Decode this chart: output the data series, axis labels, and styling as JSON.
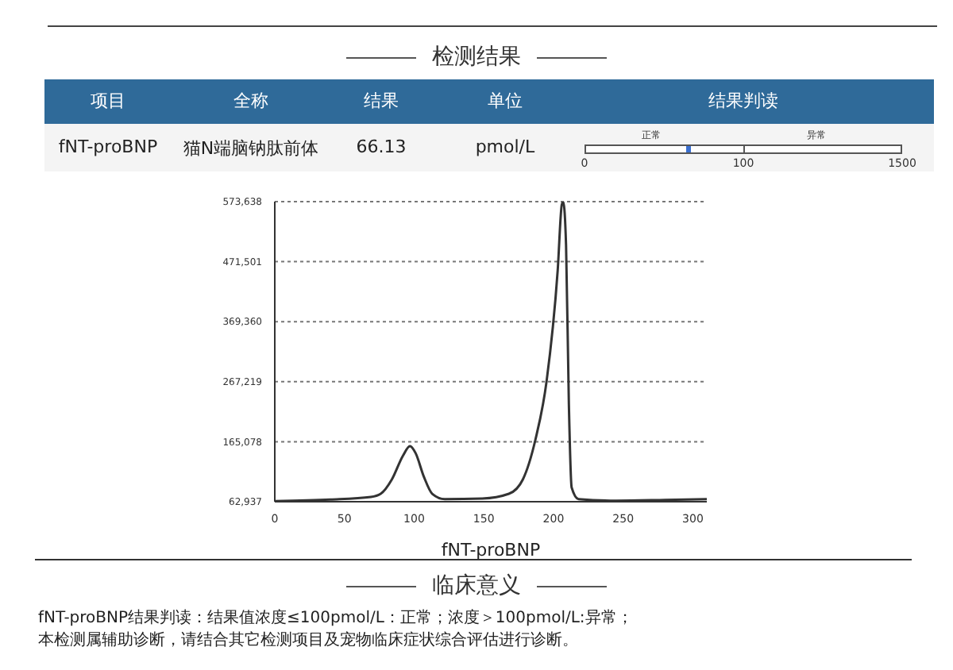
{
  "chart_data": [
    {
      "type": "other",
      "title": "检测结果",
      "categories": [
        "项目",
        "全称",
        "结果",
        "单位",
        "结果判读"
      ],
      "annotations": [
        "fNT-proBNP",
        "猫N端脑钠肽前体",
        "66.13",
        "pmol/L",
        "正常",
        "异常",
        "0",
        "100",
        "1500"
      ]
    },
    {
      "type": "line",
      "xlabel": "fNT-proBNP",
      "x": [
        0,
        40,
        69,
        76,
        84,
        92,
        97,
        101,
        107,
        113,
        122,
        149,
        168,
        178,
        187,
        195,
        203,
        206,
        207,
        209,
        211,
        213,
        218,
        245,
        280,
        310
      ],
      "series": [
        {
          "color": "#333333",
          "values": [
            64000,
            66500,
            71000,
            76400,
            100800,
            141300,
            157500,
            145800,
            105300,
            76400,
            67400,
            68300,
            76400,
            100800,
            168300,
            267400,
            456500,
            569100,
            573000,
            500000,
            231400,
            87300,
            67400,
            64700,
            66000,
            67400
          ]
        }
      ],
      "xlim": [
        0,
        310
      ],
      "xticks": [
        0,
        50,
        100,
        150,
        200,
        250,
        300
      ],
      "ylim": [
        62937,
        573638
      ],
      "yticks": [
        {
          "value": 62937,
          "label": "62,937"
        },
        {
          "value": 165078,
          "label": "165,078"
        },
        {
          "value": 267219,
          "label": "267,219"
        },
        {
          "value": 369360,
          "label": "369,360"
        },
        {
          "value": 471501,
          "label": "471,501"
        },
        {
          "value": 573638,
          "label": "573,638"
        }
      ],
      "grid": "y",
      "line_style": "solid",
      "marker": "none"
    },
    {
      "type": "other",
      "title": "临床意义",
      "annotations": [
        "fNT-proBNP结果判读：结果值浓度≤100pmol/L：正常；浓度＞100pmol/L:异常；",
        "本检测属辅助诊断，请结合其它检测项目及宠物临床症状综合评估进行诊断。"
      ]
    }
  ]
}
